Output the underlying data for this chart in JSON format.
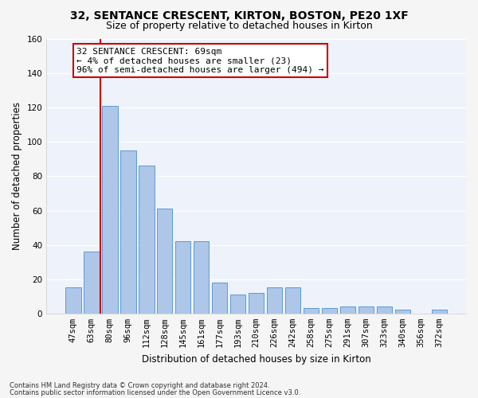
{
  "title1": "32, SENTANCE CRESCENT, KIRTON, BOSTON, PE20 1XF",
  "title2": "Size of property relative to detached houses in Kirton",
  "xlabel": "Distribution of detached houses by size in Kirton",
  "ylabel": "Number of detached properties",
  "footnote1": "Contains HM Land Registry data © Crown copyright and database right 2024.",
  "footnote2": "Contains public sector information licensed under the Open Government Licence v3.0.",
  "categories": [
    "47sqm",
    "63sqm",
    "80sqm",
    "96sqm",
    "112sqm",
    "128sqm",
    "145sqm",
    "161sqm",
    "177sqm",
    "193sqm",
    "210sqm",
    "226sqm",
    "242sqm",
    "258sqm",
    "275sqm",
    "291sqm",
    "307sqm",
    "323sqm",
    "340sqm",
    "356sqm",
    "372sqm"
  ],
  "values": [
    15,
    36,
    121,
    95,
    86,
    61,
    42,
    42,
    18,
    11,
    12,
    15,
    15,
    3,
    3,
    4,
    4,
    4,
    2,
    0,
    2
  ],
  "bar_color": "#aec6e8",
  "bar_edge_color": "#5b9bd5",
  "highlight_color": "#cc0000",
  "annotation_title": "32 SENTANCE CRESCENT: 69sqm",
  "annotation_line1": "← 4% of detached houses are smaller (23)",
  "annotation_line2": "96% of semi-detached houses are larger (494) →",
  "annotation_box_color": "#cc0000",
  "ylim": [
    0,
    160
  ],
  "yticks": [
    0,
    20,
    40,
    60,
    80,
    100,
    120,
    140,
    160
  ],
  "bg_color": "#eef3fb",
  "grid_color": "#ffffff",
  "title_fontsize": 10,
  "subtitle_fontsize": 9,
  "axis_label_fontsize": 8.5,
  "tick_fontsize": 7.5,
  "annotation_fontsize": 8
}
